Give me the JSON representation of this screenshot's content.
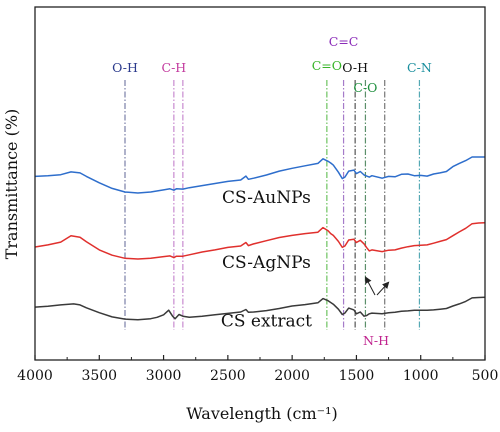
{
  "chart_data": {
    "type": "line",
    "xlabel": "Wavelength (cm⁻¹)",
    "ylabel": "Transmittance (%)",
    "xlim": [
      4000,
      500
    ],
    "x_reversed": true,
    "x_ticks": [
      "4000",
      "3500",
      "3000",
      "2500",
      "2000",
      "1500",
      "1000",
      "500"
    ],
    "y_ticks_shown": false,
    "grid": false,
    "series": [
      {
        "name": "CS-AuNPs",
        "color": "#2e6ecc",
        "points": [
          [
            4000,
            52
          ],
          [
            3900,
            52.2
          ],
          [
            3800,
            52.5
          ],
          [
            3720,
            53.3
          ],
          [
            3650,
            53
          ],
          [
            3600,
            52
          ],
          [
            3500,
            50.2
          ],
          [
            3400,
            48.6
          ],
          [
            3300,
            47.6
          ],
          [
            3200,
            47.3
          ],
          [
            3100,
            47.6
          ],
          [
            3000,
            48.2
          ],
          [
            2950,
            48.5
          ],
          [
            2920,
            48.1
          ],
          [
            2900,
            48.5
          ],
          [
            2850,
            48.4
          ],
          [
            2800,
            48.8
          ],
          [
            2700,
            49.4
          ],
          [
            2600,
            50
          ],
          [
            2500,
            50.6
          ],
          [
            2400,
            51
          ],
          [
            2360,
            52.1
          ],
          [
            2340,
            51.2
          ],
          [
            2300,
            51.5
          ],
          [
            2200,
            52.4
          ],
          [
            2100,
            53.5
          ],
          [
            2000,
            54.3
          ],
          [
            1900,
            55
          ],
          [
            1800,
            55.7
          ],
          [
            1760,
            57
          ],
          [
            1720,
            56.3
          ],
          [
            1700,
            55.8
          ],
          [
            1680,
            55.2
          ],
          [
            1640,
            53.2
          ],
          [
            1610,
            51.4
          ],
          [
            1590,
            51.8
          ],
          [
            1560,
            53.5
          ],
          [
            1520,
            53.8
          ],
          [
            1500,
            52.8
          ],
          [
            1470,
            53.4
          ],
          [
            1440,
            52.4
          ],
          [
            1420,
            52.1
          ],
          [
            1400,
            51.8
          ],
          [
            1380,
            52.2
          ],
          [
            1300,
            51.5
          ],
          [
            1250,
            52
          ],
          [
            1200,
            51.9
          ],
          [
            1150,
            52.6
          ],
          [
            1100,
            52.7
          ],
          [
            1050,
            52.2
          ],
          [
            1000,
            52.3
          ],
          [
            950,
            52.1
          ],
          [
            900,
            52.7
          ],
          [
            850,
            53
          ],
          [
            800,
            53.4
          ],
          [
            750,
            54.8
          ],
          [
            700,
            55.7
          ],
          [
            650,
            56.5
          ],
          [
            600,
            57.5
          ],
          [
            550,
            57.5
          ],
          [
            500,
            57.5
          ]
        ]
      },
      {
        "name": "CS-AgNPs",
        "color": "#e0302d",
        "points": [
          [
            4000,
            32
          ],
          [
            3900,
            32.6
          ],
          [
            3800,
            33.4
          ],
          [
            3720,
            35.2
          ],
          [
            3650,
            34.8
          ],
          [
            3600,
            33.5
          ],
          [
            3500,
            31.2
          ],
          [
            3400,
            29.7
          ],
          [
            3300,
            28.8
          ],
          [
            3200,
            28.6
          ],
          [
            3100,
            28.8
          ],
          [
            3000,
            29.3
          ],
          [
            2950,
            29.5
          ],
          [
            2920,
            29
          ],
          [
            2900,
            29.4
          ],
          [
            2850,
            29.4
          ],
          [
            2800,
            29.8
          ],
          [
            2700,
            30.6
          ],
          [
            2600,
            31.2
          ],
          [
            2500,
            31.9
          ],
          [
            2400,
            32.3
          ],
          [
            2360,
            33.3
          ],
          [
            2340,
            32.4
          ],
          [
            2300,
            32.9
          ],
          [
            2200,
            33.8
          ],
          [
            2100,
            34.7
          ],
          [
            2000,
            35.3
          ],
          [
            1900,
            35.8
          ],
          [
            1800,
            36.2
          ],
          [
            1760,
            37.5
          ],
          [
            1720,
            36.6
          ],
          [
            1700,
            35.8
          ],
          [
            1680,
            35.3
          ],
          [
            1640,
            33.6
          ],
          [
            1610,
            31.9
          ],
          [
            1590,
            32.3
          ],
          [
            1560,
            34
          ],
          [
            1520,
            34.2
          ],
          [
            1500,
            33.3
          ],
          [
            1470,
            33.9
          ],
          [
            1440,
            32.9
          ],
          [
            1420,
            31.8
          ],
          [
            1400,
            30.9
          ],
          [
            1380,
            31.2
          ],
          [
            1300,
            30.7
          ],
          [
            1250,
            31.1
          ],
          [
            1200,
            31.2
          ],
          [
            1150,
            31.7
          ],
          [
            1100,
            32.1
          ],
          [
            1050,
            32.4
          ],
          [
            1000,
            32.5
          ],
          [
            950,
            32.6
          ],
          [
            900,
            33.1
          ],
          [
            850,
            33.6
          ],
          [
            800,
            34.1
          ],
          [
            750,
            35.2
          ],
          [
            700,
            36.3
          ],
          [
            650,
            37.3
          ],
          [
            600,
            38.6
          ],
          [
            550,
            38.8
          ],
          [
            500,
            38.9
          ]
        ]
      },
      {
        "name": "CS extract",
        "color": "#3a3a3a",
        "points": [
          [
            4000,
            15
          ],
          [
            3900,
            15.2
          ],
          [
            3800,
            15.6
          ],
          [
            3700,
            15.9
          ],
          [
            3650,
            15.6
          ],
          [
            3600,
            14.8
          ],
          [
            3500,
            13.4
          ],
          [
            3400,
            12.2
          ],
          [
            3300,
            11.6
          ],
          [
            3200,
            11.4
          ],
          [
            3100,
            11.7
          ],
          [
            3050,
            12.1
          ],
          [
            3000,
            12.8
          ],
          [
            2960,
            14.1
          ],
          [
            2930,
            12.4
          ],
          [
            2910,
            11.7
          ],
          [
            2880,
            12.9
          ],
          [
            2850,
            12.4
          ],
          [
            2800,
            12.1
          ],
          [
            2700,
            12.4
          ],
          [
            2600,
            12.8
          ],
          [
            2500,
            13.2
          ],
          [
            2400,
            13.6
          ],
          [
            2360,
            14.3
          ],
          [
            2340,
            13.5
          ],
          [
            2300,
            13.6
          ],
          [
            2200,
            14
          ],
          [
            2100,
            14.6
          ],
          [
            2000,
            15.3
          ],
          [
            1900,
            15.7
          ],
          [
            1800,
            16.2
          ],
          [
            1760,
            17.4
          ],
          [
            1720,
            16.8
          ],
          [
            1700,
            16.3
          ],
          [
            1680,
            15.8
          ],
          [
            1640,
            14.4
          ],
          [
            1610,
            12.9
          ],
          [
            1590,
            13.3
          ],
          [
            1560,
            14.7
          ],
          [
            1520,
            14.2
          ],
          [
            1500,
            13.1
          ],
          [
            1470,
            13.6
          ],
          [
            1440,
            12.4
          ],
          [
            1420,
            12.6
          ],
          [
            1400,
            13.1
          ],
          [
            1380,
            13.3
          ],
          [
            1300,
            13.1
          ],
          [
            1250,
            13.4
          ],
          [
            1200,
            13.5
          ],
          [
            1150,
            13.8
          ],
          [
            1100,
            13.9
          ],
          [
            1050,
            14.1
          ],
          [
            1000,
            14.1
          ],
          [
            950,
            14.1
          ],
          [
            900,
            14.2
          ],
          [
            850,
            14.4
          ],
          [
            800,
            14.6
          ],
          [
            750,
            15.3
          ],
          [
            700,
            15.9
          ],
          [
            650,
            16.6
          ],
          [
            600,
            17.6
          ],
          [
            550,
            17.7
          ],
          [
            500,
            17.8
          ]
        ]
      }
    ],
    "curve_labels": [
      {
        "text": "CS-AuNPs",
        "series": "CS-AuNPs",
        "x": 2200,
        "y": 44.5
      },
      {
        "text": "CS-AgNPs",
        "series": "CS-AgNPs",
        "x": 2200,
        "y": 26
      },
      {
        "text": "CS extract",
        "series": "CS extract",
        "x": 2200,
        "y": 9.5
      }
    ],
    "bands": [
      {
        "label": "O-H",
        "x": 3300,
        "color": "#2b3a8c",
        "line_color": "#7a7fa8"
      },
      {
        "label": "C-H",
        "x": 2920,
        "color": "#c33a9e",
        "line_color": "#c98bd0"
      },
      {
        "label": "",
        "x": 2850,
        "color": "#c33a9e",
        "line_color": "#c98bd0"
      },
      {
        "label": "C=O",
        "x": 1730,
        "color": "#38b52a",
        "line_color": "#6cc25f"
      },
      {
        "label": "C=C",
        "x": 1600,
        "color": "#8a2bb8",
        "line_color": "#a57bc9"
      },
      {
        "label": "O-H",
        "x": 1510,
        "color": "#111111",
        "line_color": "#555555"
      },
      {
        "label": "C-O",
        "x": 1430,
        "color": "#1f8f3e",
        "line_color": "#5c8f6a"
      },
      {
        "label": "",
        "x": 1280,
        "color": "#555555",
        "line_color": "#777777"
      },
      {
        "label": "C-N",
        "x": 1010,
        "color": "#1a8f9e",
        "line_color": "#55a9b4"
      }
    ],
    "annotations": [
      {
        "label": "N-H",
        "color": "#c0248f"
      }
    ]
  }
}
